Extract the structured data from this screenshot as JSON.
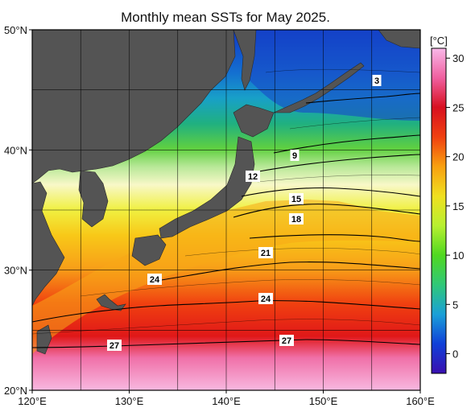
{
  "title": "Monthly mean SSTs for May 2025.",
  "map": {
    "lon_range": [
      120,
      160
    ],
    "lat_range": [
      20,
      50
    ],
    "lon_ticks": [
      "120°E",
      "130°E",
      "140°E",
      "150°E",
      "160°E"
    ],
    "lat_ticks": [
      "20°N",
      "30°N",
      "40°N",
      "50°N"
    ],
    "grid": true,
    "gridline_step_deg": 5
  },
  "colorbar": {
    "unit": "[°C]",
    "ticks": [
      "0",
      "5",
      "10",
      "15",
      "20",
      "25",
      "30"
    ],
    "range": [
      -2,
      31
    ],
    "stops": [
      "#3a0fb0",
      "#1040d8",
      "#1aa0d8",
      "#30c878",
      "#50d820",
      "#b8f030",
      "#f0e020",
      "#f8a010",
      "#f04010",
      "#d81020",
      "#f060a0",
      "#f8b8e8"
    ]
  },
  "contour_labels": [
    "3",
    "9",
    "12",
    "15",
    "18",
    "21",
    "24",
    "24",
    "27",
    "27"
  ],
  "colors": {
    "land": "#545454",
    "frame": "#000000"
  }
}
